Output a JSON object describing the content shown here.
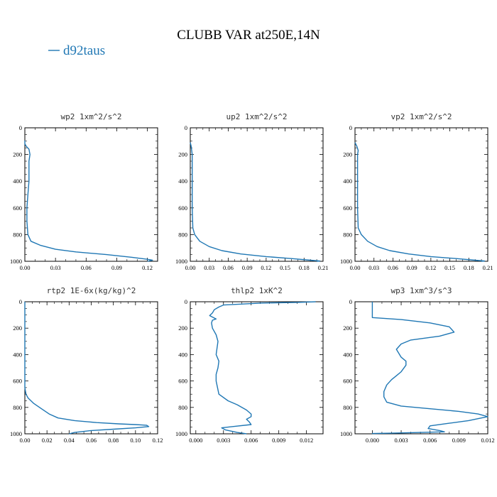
{
  "figure": {
    "title": "CLUBB VAR at250E,14N",
    "legend": {
      "label": "d92taus",
      "color": "#1f77b4"
    }
  },
  "chart_data": [
    {
      "type": "line",
      "title": "wp2  1xm^2/s^2",
      "xlim": [
        0,
        0.13
      ],
      "ylim": [
        1000,
        0
      ],
      "xticks": [
        "0.00",
        "0.03",
        "0.06",
        "0.09",
        "0.12"
      ],
      "xtick_values": [
        0,
        0.03,
        0.06,
        0.09,
        0.12
      ],
      "yticks": [
        "0",
        "200",
        "400",
        "600",
        "800",
        "1000"
      ],
      "ytick_values": [
        0,
        200,
        400,
        600,
        800,
        1000
      ],
      "series": [
        {
          "color": "#1f77b4",
          "x": [
            0.0,
            0.0,
            0.0015,
            0.004,
            0.005,
            0.004,
            0.004,
            0.004,
            0.003,
            0.002,
            0.002,
            0.003,
            0.006,
            0.015,
            0.03,
            0.05,
            0.08,
            0.105,
            0.12,
            0.125,
            0.12
          ],
          "y": [
            95,
            120,
            140,
            160,
            200,
            250,
            300,
            400,
            500,
            600,
            700,
            800,
            850,
            880,
            910,
            930,
            950,
            970,
            985,
            992,
            1000
          ]
        }
      ]
    },
    {
      "type": "line",
      "title": "up2  1xm^2/s^2",
      "xlim": [
        0,
        0.21
      ],
      "ylim": [
        1000,
        0
      ],
      "xticks": [
        "0.00",
        "0.03",
        "0.06",
        "0.09",
        "0.12",
        "0.15",
        "0.18",
        "0.21"
      ],
      "xtick_values": [
        0,
        0.03,
        0.06,
        0.09,
        0.12,
        0.15,
        0.18,
        0.21
      ],
      "yticks": [
        "0",
        "200",
        "400",
        "600",
        "800",
        "1000"
      ],
      "ytick_values": [
        0,
        200,
        400,
        600,
        800,
        1000
      ],
      "series": [
        {
          "color": "#1f77b4",
          "x": [
            0.0,
            0.0015,
            0.003,
            0.003,
            0.003,
            0.003,
            0.003,
            0.004,
            0.007,
            0.015,
            0.03,
            0.05,
            0.08,
            0.12,
            0.16,
            0.19,
            0.205,
            0.2
          ],
          "y": [
            110,
            140,
            200,
            300,
            400,
            500,
            600,
            750,
            800,
            850,
            890,
            920,
            945,
            965,
            980,
            992,
            998,
            1000
          ]
        }
      ]
    },
    {
      "type": "line",
      "title": "vp2  1xm^2/s^2",
      "xlim": [
        0,
        0.21
      ],
      "ylim": [
        1000,
        0
      ],
      "xticks": [
        "0.00",
        "0.03",
        "0.06",
        "0.09",
        "0.12",
        "0.15",
        "0.18",
        "0.21"
      ],
      "xtick_values": [
        0,
        0.03,
        0.06,
        0.09,
        0.12,
        0.15,
        0.18,
        0.21
      ],
      "yticks": [
        "0",
        "200",
        "400",
        "600",
        "800",
        "1000"
      ],
      "ytick_values": [
        0,
        200,
        400,
        600,
        800,
        1000
      ],
      "series": [
        {
          "color": "#1f77b4",
          "x": [
            0.0,
            0.003,
            0.005,
            0.004,
            0.004,
            0.004,
            0.004,
            0.005,
            0.01,
            0.02,
            0.035,
            0.055,
            0.085,
            0.12,
            0.16,
            0.19,
            0.205,
            0.2
          ],
          "y": [
            110,
            140,
            170,
            200,
            300,
            400,
            600,
            750,
            800,
            850,
            890,
            920,
            945,
            965,
            980,
            992,
            998,
            1000
          ]
        }
      ]
    },
    {
      "type": "line",
      "title": "rtp2  1E-6x(kg/kg)^2",
      "xlim": [
        0,
        0.12
      ],
      "ylim": [
        1000,
        0
      ],
      "xticks": [
        "0.00",
        "0.02",
        "0.04",
        "0.06",
        "0.08",
        "0.10",
        "0.12"
      ],
      "xtick_values": [
        0,
        0.02,
        0.04,
        0.06,
        0.08,
        0.1,
        0.12
      ],
      "yticks": [
        "0",
        "200",
        "400",
        "600",
        "800",
        "1000"
      ],
      "ytick_values": [
        0,
        200,
        400,
        600,
        800,
        1000
      ],
      "series": [
        {
          "color": "#1f77b4",
          "x": [
            0.0,
            0.0,
            0.0,
            0.001,
            0.003,
            0.008,
            0.015,
            0.022,
            0.03,
            0.045,
            0.065,
            0.085,
            0.1,
            0.11,
            0.112,
            0.1,
            0.08,
            0.06,
            0.045,
            0.04
          ],
          "y": [
            0,
            300,
            650,
            700,
            730,
            770,
            810,
            850,
            880,
            900,
            915,
            925,
            930,
            935,
            945,
            955,
            965,
            975,
            990,
            1000
          ]
        }
      ]
    },
    {
      "type": "line",
      "title": "thlp2  1xK^2",
      "xlim": [
        -0.0006,
        0.0138
      ],
      "ylim": [
        1000,
        0
      ],
      "xticks": [
        "0.000",
        "0.003",
        "0.006",
        "0.009",
        "0.012"
      ],
      "xtick_values": [
        0,
        0.003,
        0.006,
        0.009,
        0.012
      ],
      "yticks": [
        "0",
        "200",
        "400",
        "600",
        "800",
        "1000"
      ],
      "ytick_values": [
        0,
        200,
        400,
        600,
        800,
        1000
      ],
      "series": [
        {
          "color": "#1f77b4",
          "x": [
            0.013,
            0.011,
            0.007,
            0.003,
            0.0025,
            0.002,
            0.0018,
            0.0015,
            0.0019,
            0.0022,
            0.0018,
            0.0017,
            0.0018,
            0.0022,
            0.0024,
            0.0023,
            0.0022,
            0.0025,
            0.0024,
            0.0022,
            0.0022,
            0.0025,
            0.0035,
            0.0045,
            0.0055,
            0.006,
            0.006,
            0.0055,
            0.0058,
            0.006,
            0.004,
            0.0028,
            0.0032,
            0.0045,
            0.0055
          ],
          "y": [
            0,
            5,
            10,
            25,
            40,
            60,
            85,
            105,
            120,
            130,
            140,
            160,
            200,
            250,
            300,
            350,
            400,
            450,
            500,
            550,
            600,
            700,
            750,
            780,
            820,
            850,
            870,
            890,
            910,
            930,
            945,
            955,
            970,
            990,
            1000
          ]
        }
      ]
    },
    {
      "type": "line",
      "title": "wp3  1xm^3/s^3",
      "xlim": [
        -0.0018,
        0.012
      ],
      "ylim": [
        1000,
        0
      ],
      "xticks": [
        "0.000",
        "0.003",
        "0.006",
        "0.009",
        "0.012"
      ],
      "xtick_values": [
        0,
        0.003,
        0.006,
        0.009,
        0.012
      ],
      "yticks": [
        "0",
        "200",
        "400",
        "600",
        "800",
        "1000"
      ],
      "ytick_values": [
        0,
        200,
        400,
        600,
        800,
        1000
      ],
      "series": [
        {
          "color": "#1f77b4",
          "x": [
            0.0,
            0.0,
            0.003,
            0.006,
            0.008,
            0.0085,
            0.007,
            0.004,
            0.003,
            0.0025,
            0.003,
            0.0035,
            0.0035,
            0.003,
            0.0025,
            0.002,
            0.0015,
            0.0012,
            0.0012,
            0.0015,
            0.003,
            0.006,
            0.009,
            0.011,
            0.012,
            0.01,
            0.008,
            0.006,
            0.0058,
            0.007,
            0.0075,
            0.005,
            0.002,
            0.0,
            0.0
          ],
          "y": [
            0,
            120,
            135,
            160,
            190,
            230,
            260,
            290,
            320,
            360,
            420,
            450,
            480,
            530,
            560,
            590,
            630,
            680,
            720,
            760,
            790,
            810,
            830,
            850,
            870,
            900,
            920,
            940,
            960,
            975,
            985,
            990,
            995,
            998,
            1000
          ]
        }
      ]
    }
  ]
}
